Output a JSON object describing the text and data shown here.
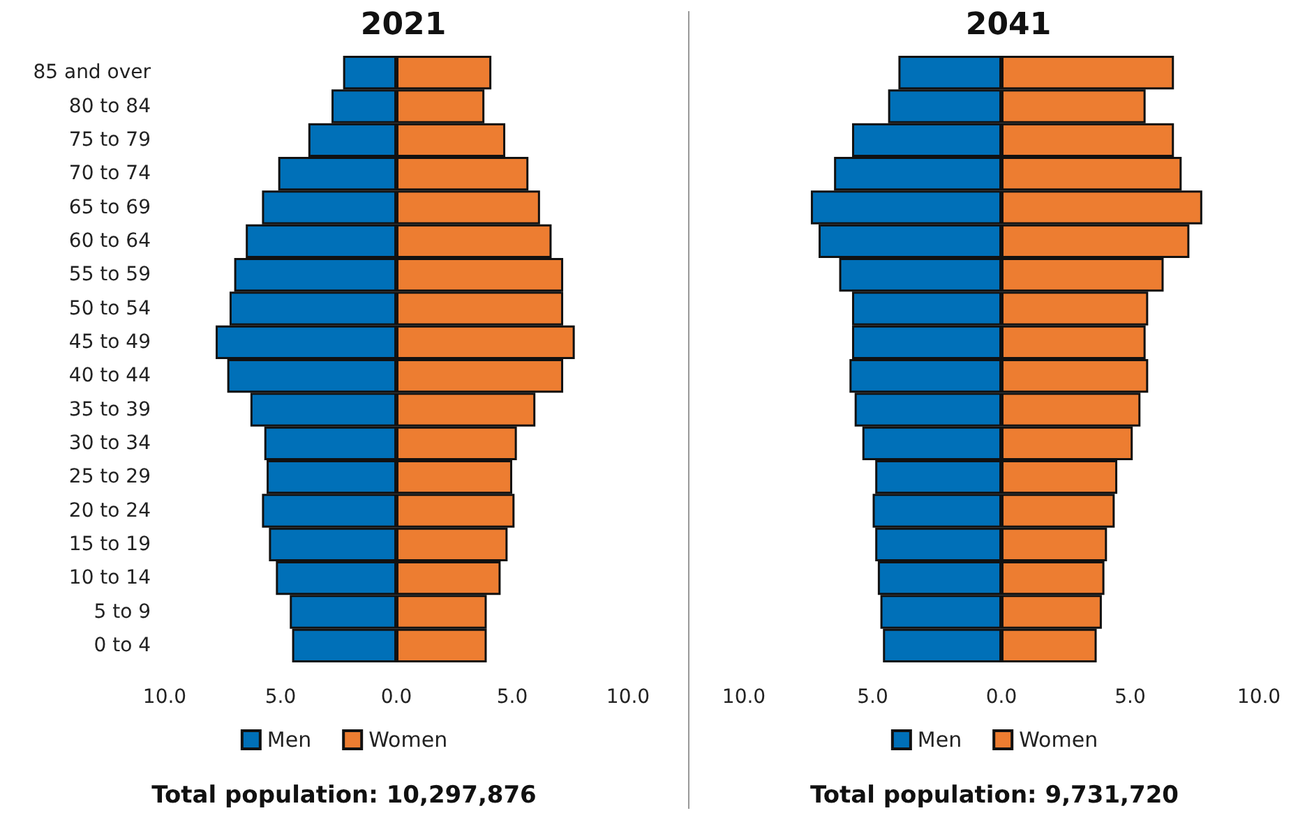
{
  "chart_data": [
    {
      "type": "bar",
      "title": "2021",
      "orientation": "horizontal",
      "stacked": true,
      "legend": "bottom",
      "grid": false,
      "categories": [
        "85 and over",
        "80 to 84",
        "75 to 79",
        "70 to 74",
        "65 to 69",
        "60 to 64",
        "55 to 59",
        "50 to 54",
        "45 to 49",
        "40 to 44",
        "35 to 39",
        "30 to 34",
        "25 to 29",
        "20 to 24",
        "15 to 19",
        "10 to 14",
        "5 to 9",
        "0 to 4"
      ],
      "series": [
        {
          "name": "Men",
          "color": "#0070b8",
          "values": [
            -2.3,
            -2.8,
            -3.8,
            -5.1,
            -5.8,
            -6.5,
            -7.0,
            -7.2,
            -7.8,
            -7.3,
            -6.3,
            -5.7,
            -5.6,
            -5.8,
            -5.5,
            -5.2,
            -4.6,
            -4.5
          ]
        },
        {
          "name": "Women",
          "color": "#ed7d31",
          "values": [
            4.1,
            3.8,
            4.7,
            5.7,
            6.2,
            6.7,
            7.2,
            7.2,
            7.7,
            7.2,
            6.0,
            5.2,
            5.0,
            5.1,
            4.8,
            4.5,
            3.9,
            3.9
          ]
        }
      ],
      "xlim": [
        -10,
        10
      ],
      "xticks": [
        {
          "value": -10,
          "label": "10.0"
        },
        {
          "value": -5,
          "label": "5.0"
        },
        {
          "value": 0,
          "label": "0.0"
        },
        {
          "value": 5,
          "label": "5.0"
        },
        {
          "value": 10,
          "label": "10.0"
        }
      ],
      "annotations": [
        "Total population: 10,297,876"
      ]
    },
    {
      "type": "bar",
      "title": "2041",
      "orientation": "horizontal",
      "stacked": true,
      "legend": "bottom",
      "grid": false,
      "tick_labels": "x",
      "categories": [
        null,
        null,
        null,
        null,
        null,
        null,
        null,
        null,
        null,
        null,
        null,
        null,
        null,
        null,
        null,
        null,
        null,
        null
      ],
      "series": [
        {
          "name": "Men",
          "color": "#0070b8",
          "values": [
            -4.0,
            -4.4,
            -5.8,
            -6.5,
            -7.4,
            -7.1,
            -6.3,
            -5.8,
            -5.8,
            -5.9,
            -5.7,
            -5.4,
            -4.9,
            -5.0,
            -4.9,
            -4.8,
            -4.7,
            -4.6
          ]
        },
        {
          "name": "Women",
          "color": "#ed7d31",
          "values": [
            6.7,
            5.6,
            6.7,
            7.0,
            7.8,
            7.3,
            6.3,
            5.7,
            5.6,
            5.7,
            5.4,
            5.1,
            4.5,
            4.4,
            4.1,
            4.0,
            3.9,
            3.7
          ]
        }
      ],
      "xlim": [
        -10,
        10
      ],
      "xticks": [
        {
          "value": -10,
          "label": "10.0"
        },
        {
          "value": -5,
          "label": "5.0"
        },
        {
          "value": 0,
          "label": "0.0"
        },
        {
          "value": 5,
          "label": "5.0"
        },
        {
          "value": 10,
          "label": "10.0"
        }
      ],
      "annotations": [
        "Total population: 9,731,720"
      ]
    }
  ]
}
